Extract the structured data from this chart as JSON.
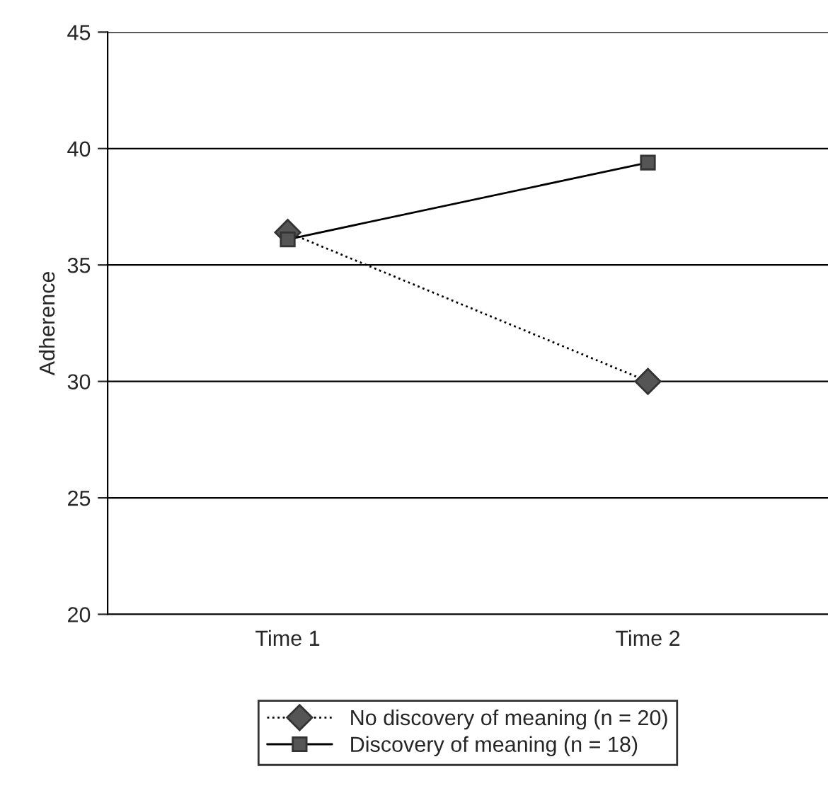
{
  "chart_data": {
    "type": "line",
    "ylabel": "Adherence",
    "categories": [
      "Time 1",
      "Time 2"
    ],
    "series": [
      {
        "name": "No discovery of meaning (n = 20)",
        "color": "#555555",
        "values": [
          36.4,
          30.0
        ],
        "marker": "diamond",
        "line_style": "dotted"
      },
      {
        "name": "Discovery of meaning (n = 18)",
        "color": "#555555",
        "values": [
          36.1,
          39.4
        ],
        "marker": "square",
        "line_style": "solid"
      }
    ],
    "ylim": [
      20,
      45
    ],
    "yticks": [
      20,
      25,
      30,
      35,
      40,
      45
    ],
    "grid": "y",
    "legend": "bottom"
  }
}
